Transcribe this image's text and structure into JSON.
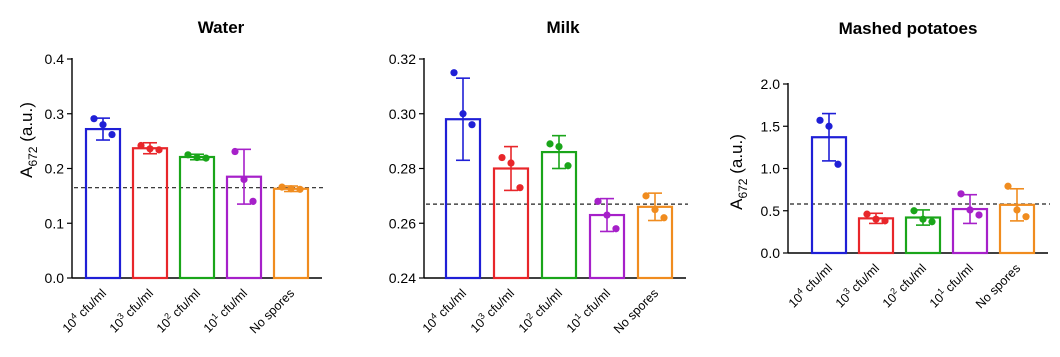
{
  "chart_data": [
    {
      "type": "bar",
      "title": "Water",
      "ylabel": "A672 (a.u.)",
      "ylabel_main": "A",
      "ylabel_sub": "672",
      "ylabel_rest": " (a.u.)",
      "xlabel": "",
      "ylim": [
        0.0,
        0.4
      ],
      "yticks": [
        "0.0",
        "0.1",
        "0.2",
        "0.3",
        "0.4"
      ],
      "categories": [
        {
          "base": "10",
          "exp": "4",
          "rest": " cfu/ml"
        },
        {
          "base": "10",
          "exp": "3",
          "rest": " cfu/ml"
        },
        {
          "base": "10",
          "exp": "2",
          "rest": " cfu/ml"
        },
        {
          "base": "10",
          "exp": "1",
          "rest": " cfu/ml"
        },
        {
          "base": "No spores",
          "exp": "",
          "rest": ""
        }
      ],
      "colors": [
        "#1f1fd6",
        "#e8262a",
        "#1aa51a",
        "#a620c9",
        "#f08c1f"
      ],
      "values": [
        0.272,
        0.237,
        0.221,
        0.185,
        0.163
      ],
      "errors": [
        0.02,
        0.01,
        0.005,
        0.05,
        0.005
      ],
      "points": [
        [
          0.291,
          0.28,
          0.262
        ],
        [
          0.242,
          0.236,
          0.234
        ],
        [
          0.225,
          0.22,
          0.219
        ],
        [
          0.231,
          0.18,
          0.14
        ],
        [
          0.166,
          0.163,
          0.162
        ]
      ],
      "threshold": 0.165,
      "grid": false,
      "legend": "none"
    },
    {
      "type": "bar",
      "title": "Milk",
      "ylabel": "",
      "xlabel": "",
      "ylim": [
        0.24,
        0.32
      ],
      "yticks": [
        "0.24",
        "0.26",
        "0.28",
        "0.30",
        "0.32"
      ],
      "categories": [
        {
          "base": "10",
          "exp": "4",
          "rest": " cfu/ml"
        },
        {
          "base": "10",
          "exp": "3",
          "rest": " cfu/ml"
        },
        {
          "base": "10",
          "exp": "2",
          "rest": " cfu/ml"
        },
        {
          "base": "10",
          "exp": "1",
          "rest": " cfu/ml"
        },
        {
          "base": "No spores",
          "exp": "",
          "rest": ""
        }
      ],
      "colors": [
        "#1f1fd6",
        "#e8262a",
        "#1aa51a",
        "#a620c9",
        "#f08c1f"
      ],
      "values": [
        0.298,
        0.28,
        0.286,
        0.263,
        0.266
      ],
      "errors": [
        0.015,
        0.008,
        0.006,
        0.006,
        0.005
      ],
      "points": [
        [
          0.315,
          0.3,
          0.296
        ],
        [
          0.284,
          0.282,
          0.273
        ],
        [
          0.289,
          0.288,
          0.281
        ],
        [
          0.268,
          0.263,
          0.258
        ],
        [
          0.27,
          0.265,
          0.262
        ]
      ],
      "threshold": 0.267,
      "grid": false,
      "legend": "none"
    },
    {
      "type": "bar",
      "title": "Mashed potatoes",
      "ylabel": "A672 (a.u.)",
      "ylabel_main": "A",
      "ylabel_sub": "672",
      "ylabel_rest": " (a.u.)",
      "xlabel": "",
      "ylim": [
        0.0,
        2.0
      ],
      "yticks": [
        "0.0",
        "0.5",
        "1.0",
        "1.5",
        "2.0"
      ],
      "categories": [
        {
          "base": "10",
          "exp": "4",
          "rest": " cfu/ml"
        },
        {
          "base": "10",
          "exp": "3",
          "rest": " cfu/ml"
        },
        {
          "base": "10",
          "exp": "2",
          "rest": " cfu/ml"
        },
        {
          "base": "10",
          "exp": "1",
          "rest": " cfu/ml"
        },
        {
          "base": "No spores",
          "exp": "",
          "rest": ""
        }
      ],
      "colors": [
        "#1f1fd6",
        "#e8262a",
        "#1aa51a",
        "#a620c9",
        "#f08c1f"
      ],
      "values": [
        1.37,
        0.41,
        0.42,
        0.52,
        0.57
      ],
      "errors": [
        0.28,
        0.06,
        0.09,
        0.17,
        0.19
      ],
      "points": [
        [
          1.57,
          1.5,
          1.05
        ],
        [
          0.46,
          0.4,
          0.38
        ],
        [
          0.5,
          0.4,
          0.37
        ],
        [
          0.7,
          0.51,
          0.45
        ],
        [
          0.79,
          0.51,
          0.43
        ]
      ],
      "threshold": 0.58,
      "grid": false,
      "legend": "none"
    }
  ]
}
